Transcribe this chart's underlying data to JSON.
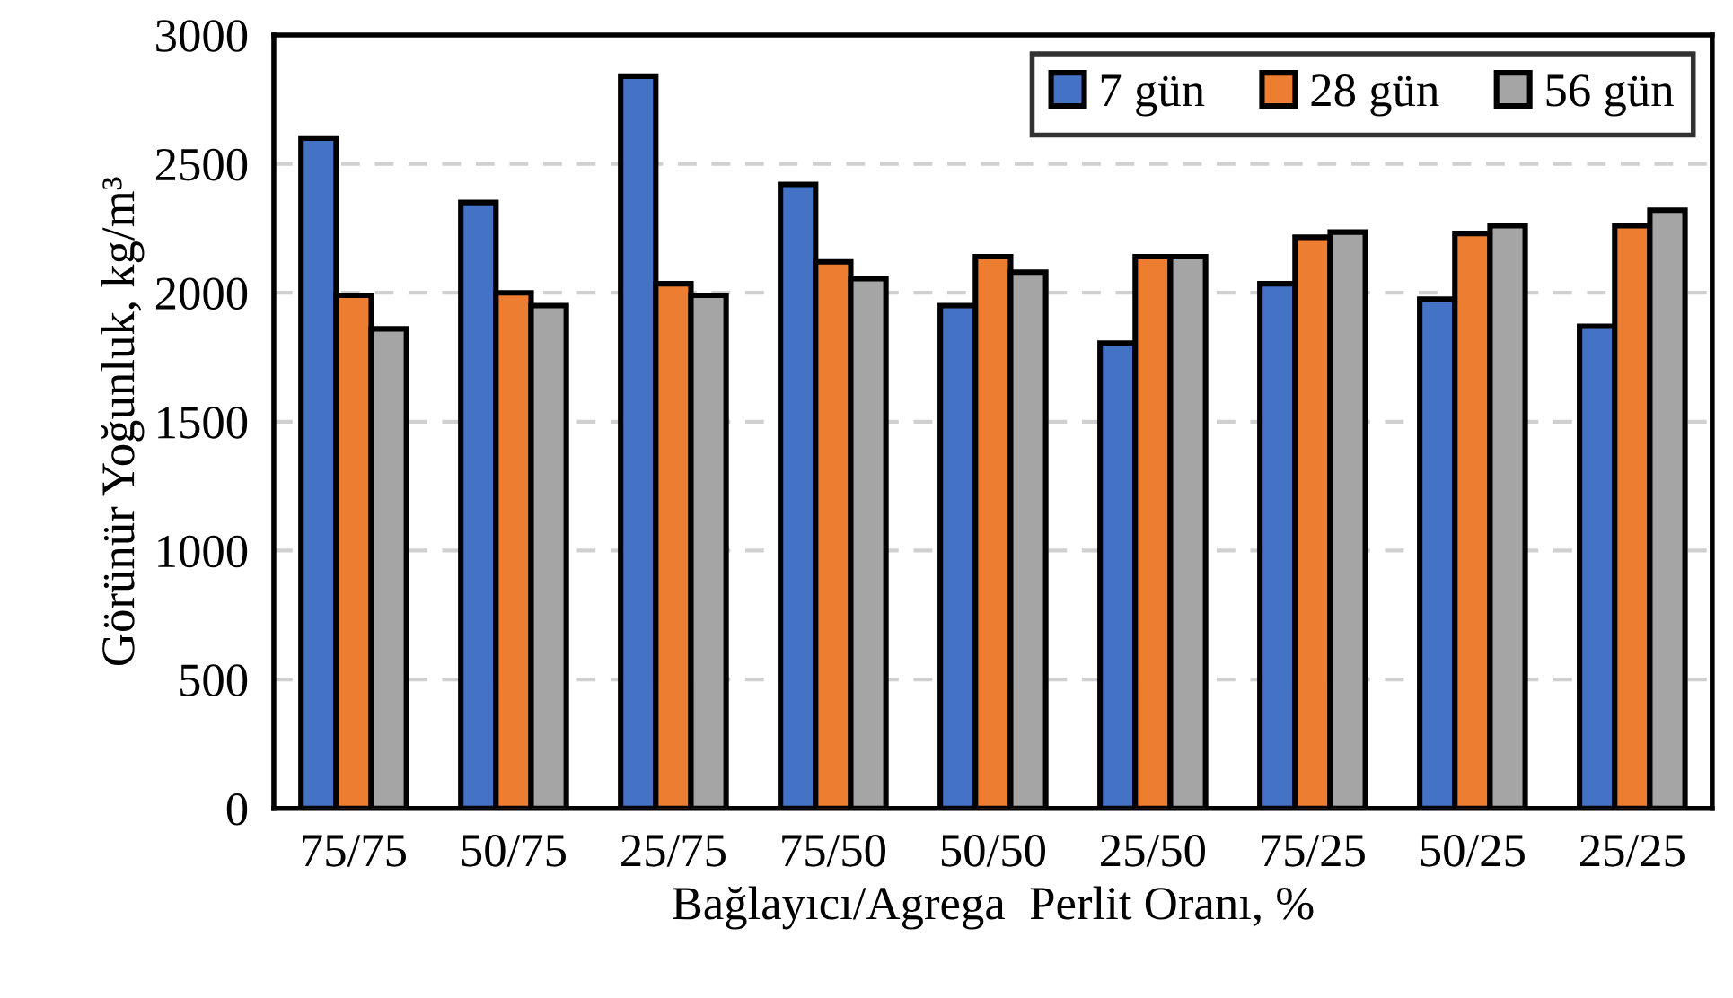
{
  "chart_data": {
    "type": "bar",
    "xlabel": "Bağlayıcı/Agrega  Perlit Oranı, %",
    "ylabel": "Görünür Yoğunluk, kg/m³",
    "categories": [
      "75/75",
      "50/75",
      "25/75",
      "75/50",
      "50/50",
      "25/50",
      "75/25",
      "50/25",
      "25/25"
    ],
    "series": [
      {
        "name": "7 gün",
        "color": "#4472c4",
        "values": [
          2600,
          2350,
          2840,
          2420,
          1950,
          1805,
          2035,
          1975,
          1870
        ]
      },
      {
        "name": "28 gün",
        "color": "#ed7d31",
        "values": [
          1990,
          2000,
          2035,
          2120,
          2140,
          2140,
          2215,
          2230,
          2260
        ]
      },
      {
        "name": "56 gün",
        "color": "#a5a5a5",
        "values": [
          1860,
          1950,
          1990,
          2055,
          2080,
          2140,
          2235,
          2260,
          2320
        ]
      }
    ],
    "ylim": [
      0,
      3000
    ],
    "yticks": [
      0,
      500,
      1000,
      1500,
      2000,
      2500,
      3000
    ],
    "grid": "y",
    "legend": "top right"
  }
}
